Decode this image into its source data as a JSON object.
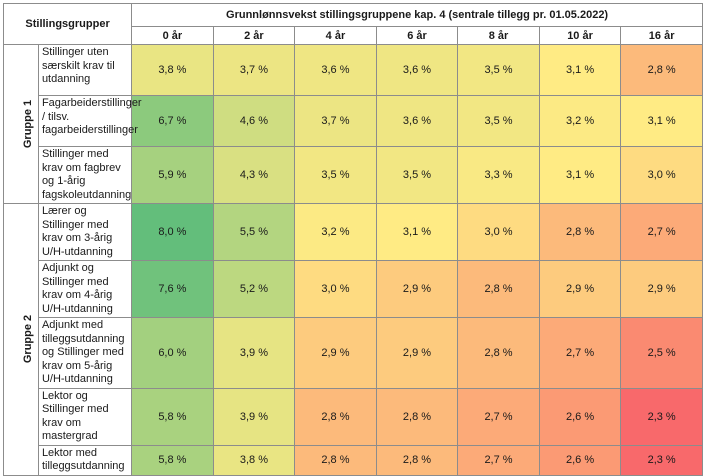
{
  "header": {
    "group_col": "Stillingsgrupper",
    "title": "Grunnlønnsvekst stillingsgruppene kap. 4 (sentrale tillegg pr. 01.05.2022)"
  },
  "chart_data": {
    "type": "heatmap",
    "title": "Grunnlønnsvekst stillingsgruppene kap. 4 (sentrale tillegg pr. 01.05.2022)",
    "unit": "%",
    "columns": [
      "0 år",
      "2 år",
      "4 år",
      "6 år",
      "8 år",
      "10 år",
      "16 år"
    ],
    "groups": [
      {
        "name": "Gruppe 1",
        "rows": [
          {
            "label": "Stillinger uten særskilt krav til utdanning",
            "values": [
              3.8,
              3.7,
              3.6,
              3.6,
              3.5,
              3.1,
              2.8
            ]
          },
          {
            "label": "Fagarbeiderstillinger / tilsv. fagarbeiderstillinger",
            "values": [
              6.7,
              4.6,
              3.7,
              3.6,
              3.5,
              3.2,
              3.1
            ]
          },
          {
            "label": "Stillinger med krav om fagbrev og 1-årig fagskoleutdanning",
            "values": [
              5.9,
              4.3,
              3.5,
              3.5,
              3.3,
              3.1,
              3.0
            ]
          }
        ]
      },
      {
        "name": "Gruppe 2",
        "rows": [
          {
            "label": "Lærer og Stillinger med krav om 3-årig U/H-utdanning",
            "values": [
              8.0,
              5.5,
              3.2,
              3.1,
              3.0,
              2.8,
              2.7
            ]
          },
          {
            "label": "Adjunkt og Stillinger med krav om 4-årig U/H-utdanning",
            "values": [
              7.6,
              5.2,
              3.0,
              2.9,
              2.8,
              2.9,
              2.9
            ]
          },
          {
            "label": "Adjunkt med tilleggsutdanning og Stillinger med krav om 5-årig U/H-utdanning",
            "values": [
              6.0,
              3.9,
              2.9,
              2.9,
              2.8,
              2.7,
              2.5
            ]
          },
          {
            "label": "Lektor og Stillinger med krav om mastergrad",
            "values": [
              5.8,
              3.9,
              2.8,
              2.8,
              2.7,
              2.6,
              2.3
            ]
          },
          {
            "label": "Lektor med tilleggsutdanning",
            "values": [
              5.8,
              3.8,
              2.8,
              2.8,
              2.7,
              2.6,
              2.3
            ]
          }
        ]
      }
    ],
    "color_scale": {
      "low": "#f8696b",
      "mid": "#ffeb84",
      "high": "#63be7b"
    }
  }
}
